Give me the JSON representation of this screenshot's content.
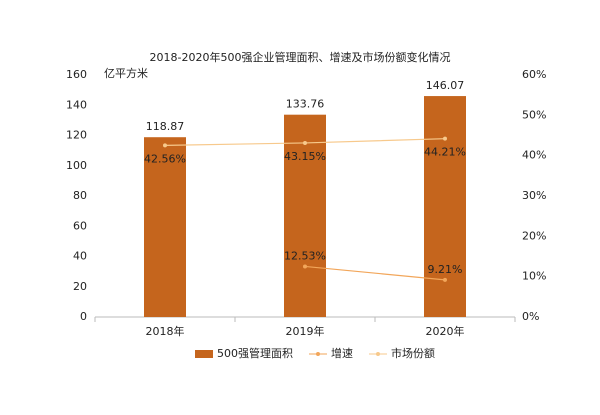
{
  "chart_data": {
    "type": "combo",
    "title": "2018-2020年500强企业管理面积、增速及市场份额变化情况",
    "y_label": "亿平方米",
    "categories": [
      "2018年",
      "2019年",
      "2020年"
    ],
    "series": [
      {
        "name": "500强管理面积",
        "type": "bar",
        "color": "#c5651d",
        "values": [
          118.87,
          133.76,
          146.07
        ]
      },
      {
        "name": "增速",
        "type": "line",
        "axis": "y2",
        "color": "#f2a65a",
        "values": [
          null,
          12.53,
          9.21
        ],
        "value_labels": [
          null,
          "12.53%",
          "9.21%"
        ]
      },
      {
        "name": "市场份额",
        "type": "line",
        "axis": "y2",
        "color": "#f7c98c",
        "values": [
          42.56,
          43.15,
          44.21
        ],
        "value_labels": [
          "42.56%",
          "43.15%",
          "44.21%"
        ]
      }
    ],
    "ylim": [
      0,
      160
    ],
    "yticks": [
      0,
      20,
      40,
      60,
      80,
      100,
      120,
      140,
      160
    ],
    "y2lim": [
      0,
      60
    ],
    "y2ticks": [
      {
        "value": 0,
        "label": "0%"
      },
      {
        "value": 10,
        "label": "10%"
      },
      {
        "value": 20,
        "label": "20%"
      },
      {
        "value": 30,
        "label": "30%"
      },
      {
        "value": 40,
        "label": "40%"
      },
      {
        "value": 50,
        "label": "50%"
      },
      {
        "value": 60,
        "label": "60%"
      }
    ],
    "grid": false
  }
}
